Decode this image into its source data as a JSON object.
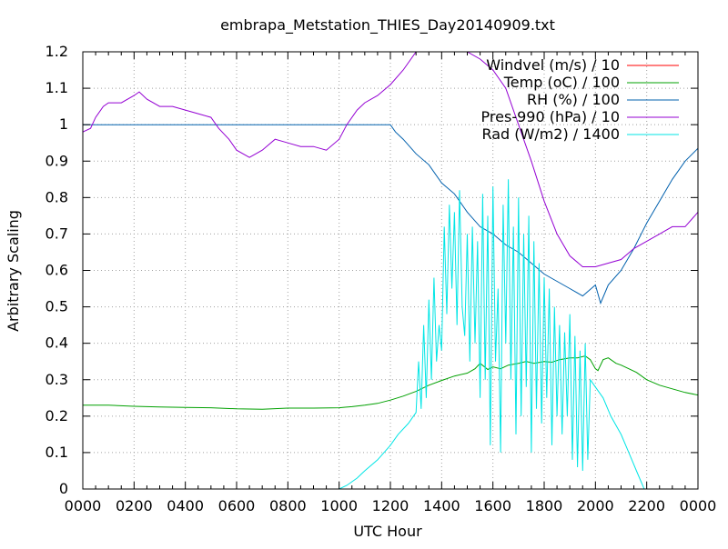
{
  "chart_data": {
    "type": "line",
    "title": "embrapa_Metstation_THIES_Day20140909.txt",
    "xlabel": "UTC Hour",
    "ylabel": "Arbitrary Scaling",
    "xlim": [
      0,
      24
    ],
    "ylim": [
      0,
      1.2
    ],
    "grid": true,
    "legend_position": "top-right",
    "x_ticks": [
      {
        "value": 0,
        "label": "0000"
      },
      {
        "value": 2,
        "label": "0200"
      },
      {
        "value": 4,
        "label": "0400"
      },
      {
        "value": 6,
        "label": "0600"
      },
      {
        "value": 8,
        "label": "0800"
      },
      {
        "value": 10,
        "label": "1000"
      },
      {
        "value": 12,
        "label": "1200"
      },
      {
        "value": 14,
        "label": "1400"
      },
      {
        "value": 16,
        "label": "1600"
      },
      {
        "value": 18,
        "label": "1800"
      },
      {
        "value": 20,
        "label": "2000"
      },
      {
        "value": 22,
        "label": "2200"
      },
      {
        "value": 24,
        "label": "0000"
      }
    ],
    "y_ticks": [
      {
        "value": 0,
        "label": "0"
      },
      {
        "value": 0.1,
        "label": "0.1"
      },
      {
        "value": 0.2,
        "label": "0.2"
      },
      {
        "value": 0.3,
        "label": "0.3"
      },
      {
        "value": 0.4,
        "label": "0.4"
      },
      {
        "value": 0.5,
        "label": "0.5"
      },
      {
        "value": 0.6,
        "label": "0.6"
      },
      {
        "value": 0.7,
        "label": "0.7"
      },
      {
        "value": 0.8,
        "label": "0.8"
      },
      {
        "value": 0.9,
        "label": "0.9"
      },
      {
        "value": 1.0,
        "label": "1"
      },
      {
        "value": 1.1,
        "label": "1.1"
      },
      {
        "value": 1.2,
        "label": "1.2"
      }
    ],
    "series": [
      {
        "name": "Windvel (m/s) / 10",
        "color": "#ff0000",
        "points": []
      },
      {
        "name": "Temp (oC) / 100",
        "color": "#00a000",
        "points": [
          [
            0,
            0.23
          ],
          [
            1,
            0.23
          ],
          [
            2,
            0.227
          ],
          [
            3,
            0.225
          ],
          [
            4,
            0.224
          ],
          [
            5,
            0.223
          ],
          [
            6,
            0.22
          ],
          [
            7,
            0.219
          ],
          [
            8,
            0.222
          ],
          [
            9,
            0.222
          ],
          [
            10,
            0.223
          ],
          [
            10.5,
            0.226
          ],
          [
            11,
            0.23
          ],
          [
            11.5,
            0.235
          ],
          [
            12,
            0.244
          ],
          [
            12.5,
            0.255
          ],
          [
            13,
            0.268
          ],
          [
            13.5,
            0.285
          ],
          [
            14,
            0.298
          ],
          [
            14.5,
            0.31
          ],
          [
            15,
            0.318
          ],
          [
            15.3,
            0.33
          ],
          [
            15.5,
            0.345
          ],
          [
            15.8,
            0.328
          ],
          [
            16,
            0.335
          ],
          [
            16.3,
            0.33
          ],
          [
            16.6,
            0.34
          ],
          [
            17,
            0.345
          ],
          [
            17.3,
            0.35
          ],
          [
            17.6,
            0.345
          ],
          [
            18,
            0.35
          ],
          [
            18.3,
            0.348
          ],
          [
            18.6,
            0.355
          ],
          [
            19,
            0.36
          ],
          [
            19.3,
            0.36
          ],
          [
            19.6,
            0.365
          ],
          [
            19.8,
            0.355
          ],
          [
            20,
            0.33
          ],
          [
            20.1,
            0.325
          ],
          [
            20.3,
            0.355
          ],
          [
            20.5,
            0.36
          ],
          [
            20.8,
            0.345
          ],
          [
            21,
            0.34
          ],
          [
            21.3,
            0.33
          ],
          [
            21.6,
            0.32
          ],
          [
            22,
            0.3
          ],
          [
            22.5,
            0.285
          ],
          [
            23,
            0.275
          ],
          [
            23.5,
            0.265
          ],
          [
            24,
            0.258
          ]
        ]
      },
      {
        "name": "RH (%) / 100",
        "color": "#0060ad",
        "points": [
          [
            0,
            1.0
          ],
          [
            12,
            1.0
          ],
          [
            12.2,
            0.98
          ],
          [
            12.5,
            0.96
          ],
          [
            13,
            0.92
          ],
          [
            13.5,
            0.89
          ],
          [
            14,
            0.84
          ],
          [
            14.5,
            0.81
          ],
          [
            15,
            0.76
          ],
          [
            15.5,
            0.72
          ],
          [
            16,
            0.7
          ],
          [
            16.5,
            0.67
          ],
          [
            17,
            0.65
          ],
          [
            17.5,
            0.62
          ],
          [
            18,
            0.59
          ],
          [
            18.5,
            0.57
          ],
          [
            19,
            0.55
          ],
          [
            19.5,
            0.53
          ],
          [
            20,
            0.56
          ],
          [
            20.2,
            0.51
          ],
          [
            20.5,
            0.56
          ],
          [
            21,
            0.6
          ],
          [
            21.5,
            0.66
          ],
          [
            22,
            0.73
          ],
          [
            22.5,
            0.79
          ],
          [
            23,
            0.85
          ],
          [
            23.5,
            0.9
          ],
          [
            24,
            0.935
          ]
        ]
      },
      {
        "name": "Pres-990 (hPa) / 10",
        "color": "#9400d3",
        "points": [
          [
            0,
            0.98
          ],
          [
            0.3,
            0.99
          ],
          [
            0.5,
            1.02
          ],
          [
            0.8,
            1.05
          ],
          [
            1,
            1.06
          ],
          [
            1.5,
            1.06
          ],
          [
            2,
            1.08
          ],
          [
            2.2,
            1.09
          ],
          [
            2.5,
            1.07
          ],
          [
            3,
            1.05
          ],
          [
            3.5,
            1.05
          ],
          [
            4,
            1.04
          ],
          [
            4.5,
            1.03
          ],
          [
            5,
            1.02
          ],
          [
            5.3,
            0.99
          ],
          [
            5.7,
            0.96
          ],
          [
            6,
            0.93
          ],
          [
            6.5,
            0.91
          ],
          [
            7,
            0.93
          ],
          [
            7.5,
            0.96
          ],
          [
            8,
            0.95
          ],
          [
            8.5,
            0.94
          ],
          [
            9,
            0.94
          ],
          [
            9.5,
            0.93
          ],
          [
            10,
            0.96
          ],
          [
            10.3,
            1.0
          ],
          [
            10.7,
            1.04
          ],
          [
            11,
            1.06
          ],
          [
            11.5,
            1.08
          ],
          [
            12,
            1.11
          ],
          [
            12.5,
            1.15
          ],
          [
            13,
            1.2
          ],
          [
            13.2,
            1.23
          ],
          [
            14.5,
            1.23
          ],
          [
            15,
            1.2
          ],
          [
            15.5,
            1.18
          ],
          [
            16,
            1.15
          ],
          [
            16.5,
            1.1
          ],
          [
            17,
            1.0
          ],
          [
            17.5,
            0.9
          ],
          [
            18,
            0.79
          ],
          [
            18.5,
            0.7
          ],
          [
            19,
            0.64
          ],
          [
            19.5,
            0.61
          ],
          [
            20,
            0.61
          ],
          [
            20.5,
            0.62
          ],
          [
            21,
            0.63
          ],
          [
            21.5,
            0.66
          ],
          [
            22,
            0.68
          ],
          [
            22.5,
            0.7
          ],
          [
            23,
            0.72
          ],
          [
            23.5,
            0.72
          ],
          [
            24,
            0.76
          ]
        ]
      },
      {
        "name": "Rad (W/m2) / 1400",
        "color": "#00e5e5",
        "points": [
          [
            0,
            0
          ],
          [
            10,
            0
          ],
          [
            10.3,
            0.01
          ],
          [
            10.7,
            0.03
          ],
          [
            11,
            0.05
          ],
          [
            11.5,
            0.08
          ],
          [
            12,
            0.12
          ],
          [
            12.3,
            0.15
          ],
          [
            12.7,
            0.18
          ],
          [
            13,
            0.21
          ],
          [
            13.1,
            0.35
          ],
          [
            13.2,
            0.22
          ],
          [
            13.3,
            0.45
          ],
          [
            13.4,
            0.25
          ],
          [
            13.5,
            0.52
          ],
          [
            13.6,
            0.3
          ],
          [
            13.7,
            0.58
          ],
          [
            13.8,
            0.35
          ],
          [
            13.9,
            0.45
          ],
          [
            14,
            0.38
          ],
          [
            14.1,
            0.72
          ],
          [
            14.2,
            0.48
          ],
          [
            14.3,
            0.78
          ],
          [
            14.4,
            0.55
          ],
          [
            14.5,
            0.76
          ],
          [
            14.6,
            0.45
          ],
          [
            14.7,
            0.82
          ],
          [
            14.8,
            0.5
          ],
          [
            14.9,
            0.42
          ],
          [
            15,
            0.7
          ],
          [
            15.1,
            0.35
          ],
          [
            15.2,
            0.72
          ],
          [
            15.3,
            0.4
          ],
          [
            15.4,
            0.68
          ],
          [
            15.5,
            0.25
          ],
          [
            15.6,
            0.81
          ],
          [
            15.7,
            0.3
          ],
          [
            15.8,
            0.75
          ],
          [
            15.9,
            0.12
          ],
          [
            16,
            0.83
          ],
          [
            16.1,
            0.35
          ],
          [
            16.2,
            0.55
          ],
          [
            16.3,
            0.1
          ],
          [
            16.4,
            0.78
          ],
          [
            16.5,
            0.4
          ],
          [
            16.6,
            0.85
          ],
          [
            16.7,
            0.3
          ],
          [
            16.8,
            0.72
          ],
          [
            16.9,
            0.15
          ],
          [
            17,
            0.8
          ],
          [
            17.1,
            0.2
          ],
          [
            17.2,
            0.7
          ],
          [
            17.3,
            0.28
          ],
          [
            17.4,
            0.75
          ],
          [
            17.5,
            0.1
          ],
          [
            17.6,
            0.68
          ],
          [
            17.7,
            0.22
          ],
          [
            17.8,
            0.62
          ],
          [
            17.9,
            0.18
          ],
          [
            18,
            0.58
          ],
          [
            18.1,
            0.25
          ],
          [
            18.2,
            0.55
          ],
          [
            18.3,
            0.12
          ],
          [
            18.4,
            0.5
          ],
          [
            18.5,
            0.2
          ],
          [
            18.6,
            0.45
          ],
          [
            18.7,
            0.15
          ],
          [
            18.8,
            0.43
          ],
          [
            18.9,
            0.2
          ],
          [
            19,
            0.48
          ],
          [
            19.1,
            0.08
          ],
          [
            19.2,
            0.42
          ],
          [
            19.3,
            0.06
          ],
          [
            19.4,
            0.38
          ],
          [
            19.5,
            0.05
          ],
          [
            19.6,
            0.4
          ],
          [
            19.7,
            0.08
          ],
          [
            19.8,
            0.3
          ],
          [
            20,
            0.28
          ],
          [
            20.3,
            0.25
          ],
          [
            20.6,
            0.2
          ],
          [
            21,
            0.15
          ],
          [
            21.3,
            0.1
          ],
          [
            21.6,
            0.05
          ],
          [
            21.9,
            0
          ],
          [
            22,
            0
          ],
          [
            24,
            0
          ]
        ]
      }
    ]
  }
}
